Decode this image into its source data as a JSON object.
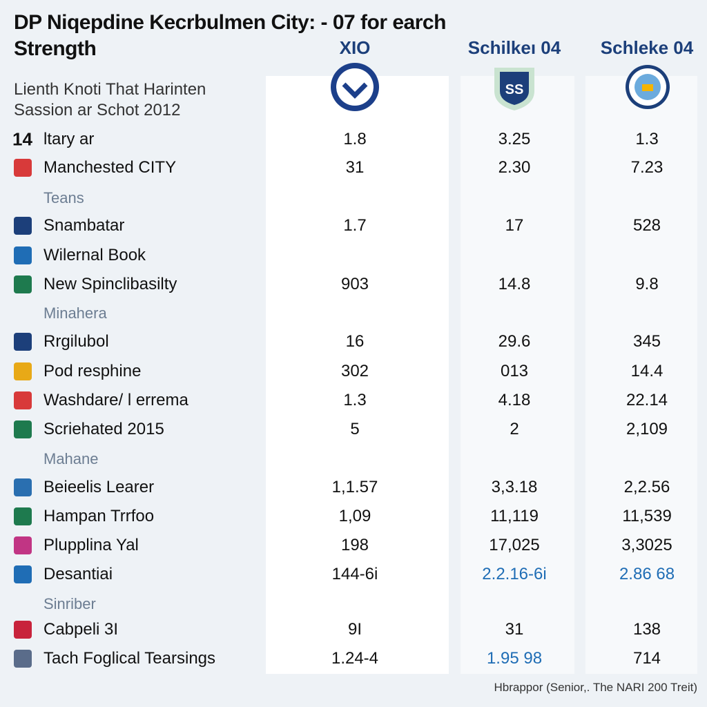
{
  "header": {
    "title_line1": "DP Niqepdine Kecrbulmen City: - 07 for earch",
    "title_line2": "Strength",
    "subtitle_line1": "Lienth Knoti That Harinten",
    "subtitle_line2": "Sassion ar Schot 2012",
    "columns": [
      "XIO",
      "Schilkeı 04",
      "Schleke 04"
    ]
  },
  "table": {
    "rows": [
      {
        "prefix": "14",
        "label": "ltary ar",
        "values": [
          "1.8",
          "3.25",
          "1.3"
        ]
      },
      {
        "label": "Manchested CITY",
        "values": [
          "31",
          "2.30",
          "7.23"
        ]
      },
      {
        "section": "Teans"
      },
      {
        "label": "Snambatar",
        "values": [
          "1.7",
          "17",
          "528"
        ]
      },
      {
        "label": "Wilernal Book"
      },
      {
        "label": "New Spinclibasilty",
        "values": [
          "903",
          "14.8",
          "9.8"
        ]
      },
      {
        "section": "Minahera"
      },
      {
        "label": "Rrgilubol",
        "values": [
          "16",
          "29.6",
          "345"
        ]
      },
      {
        "label": "Pod resphine",
        "values": [
          "302",
          "013",
          "14.4"
        ]
      },
      {
        "label": "Washdare/ l errema",
        "values": [
          "1.3",
          "4.18",
          "22.14"
        ]
      },
      {
        "label": "Scriehated 2015",
        "values": [
          "5",
          "2",
          "2,109"
        ]
      },
      {
        "section": "Mahane"
      },
      {
        "label": "Beieelis Learer",
        "values": [
          "1,1.57",
          "3,3.18",
          "2,2.56"
        ]
      },
      {
        "label": "Hampan Trrfoo",
        "values": [
          "1,09",
          "11,119",
          "11,539"
        ]
      },
      {
        "label": "Plupplina Yal",
        "values": [
          "198",
          "17,025",
          "3,3025"
        ]
      },
      {
        "label": "Desantiai",
        "values": [
          "144-6i",
          "2.2.16-6i",
          "2.86 68"
        ],
        "blue_cells": [
          1,
          2
        ]
      },
      {
        "section": "Sinriber"
      },
      {
        "label": "Cabpeli 3I",
        "values": [
          "9I",
          "31",
          "138"
        ]
      },
      {
        "label": "Tach Foglical Tearsings",
        "values": [
          "1.24-4",
          "1.95 98",
          "714"
        ],
        "blue_cells": [
          1
        ]
      }
    ]
  },
  "footer": {
    "note": "Hbrappor (Senior,. The NARI 200 Treit)"
  }
}
